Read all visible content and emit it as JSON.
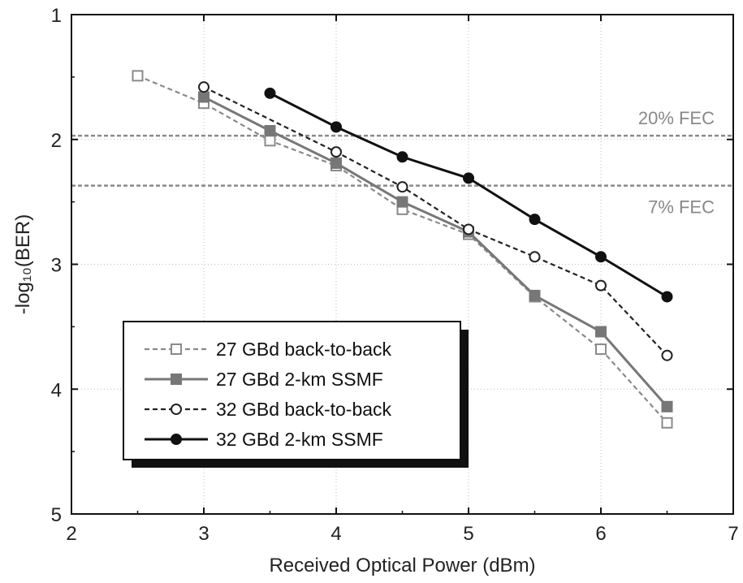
{
  "chart_data": {
    "type": "line",
    "xlabel": "Received Optical Power (dBm)",
    "ylabel": "-log₁₀(BER)",
    "xlim": [
      2,
      7
    ],
    "ylim": [
      1,
      5
    ],
    "y_inverted": true,
    "x_ticks": [
      2,
      3,
      4,
      5,
      6,
      7
    ],
    "y_ticks": [
      1,
      2,
      3,
      4,
      5
    ],
    "grid": true,
    "legend_position": "bottom-left",
    "thresholds": [
      {
        "label": "20% FEC",
        "y": 1.97
      },
      {
        "label": "7% FEC",
        "y": 2.37
      }
    ],
    "series": [
      {
        "name": "27 GBd back-to-back",
        "marker": "open-square",
        "line": "dashed",
        "color": "#8a8a8a",
        "x": [
          2.5,
          3.0,
          3.5,
          4.0,
          4.5,
          5.0,
          5.5,
          6.0,
          6.5
        ],
        "y": [
          1.49,
          1.71,
          2.01,
          2.21,
          2.56,
          2.76,
          3.26,
          3.68,
          4.27
        ]
      },
      {
        "name": "27 GBd 2-km SSMF",
        "marker": "filled-square",
        "line": "solid",
        "color": "#777777",
        "x": [
          3.0,
          3.5,
          4.0,
          4.5,
          5.0,
          5.5,
          6.0,
          6.5
        ],
        "y": [
          1.66,
          1.93,
          2.19,
          2.5,
          2.74,
          3.25,
          3.54,
          4.14
        ]
      },
      {
        "name": "32 GBd back-to-back",
        "marker": "open-circle",
        "line": "dashed",
        "color": "#222222",
        "x": [
          3.0,
          4.0,
          4.5,
          5.0,
          5.5,
          6.0,
          6.5
        ],
        "y": [
          1.58,
          2.1,
          2.38,
          2.72,
          2.94,
          3.17,
          3.73
        ]
      },
      {
        "name": "32 GBd 2-km SSMF",
        "marker": "filled-circle",
        "line": "solid",
        "color": "#111111",
        "x": [
          3.5,
          4.0,
          4.5,
          5.0,
          5.5,
          6.0,
          6.5
        ],
        "y": [
          1.63,
          1.9,
          2.14,
          2.31,
          2.64,
          2.94,
          3.26
        ]
      }
    ]
  }
}
